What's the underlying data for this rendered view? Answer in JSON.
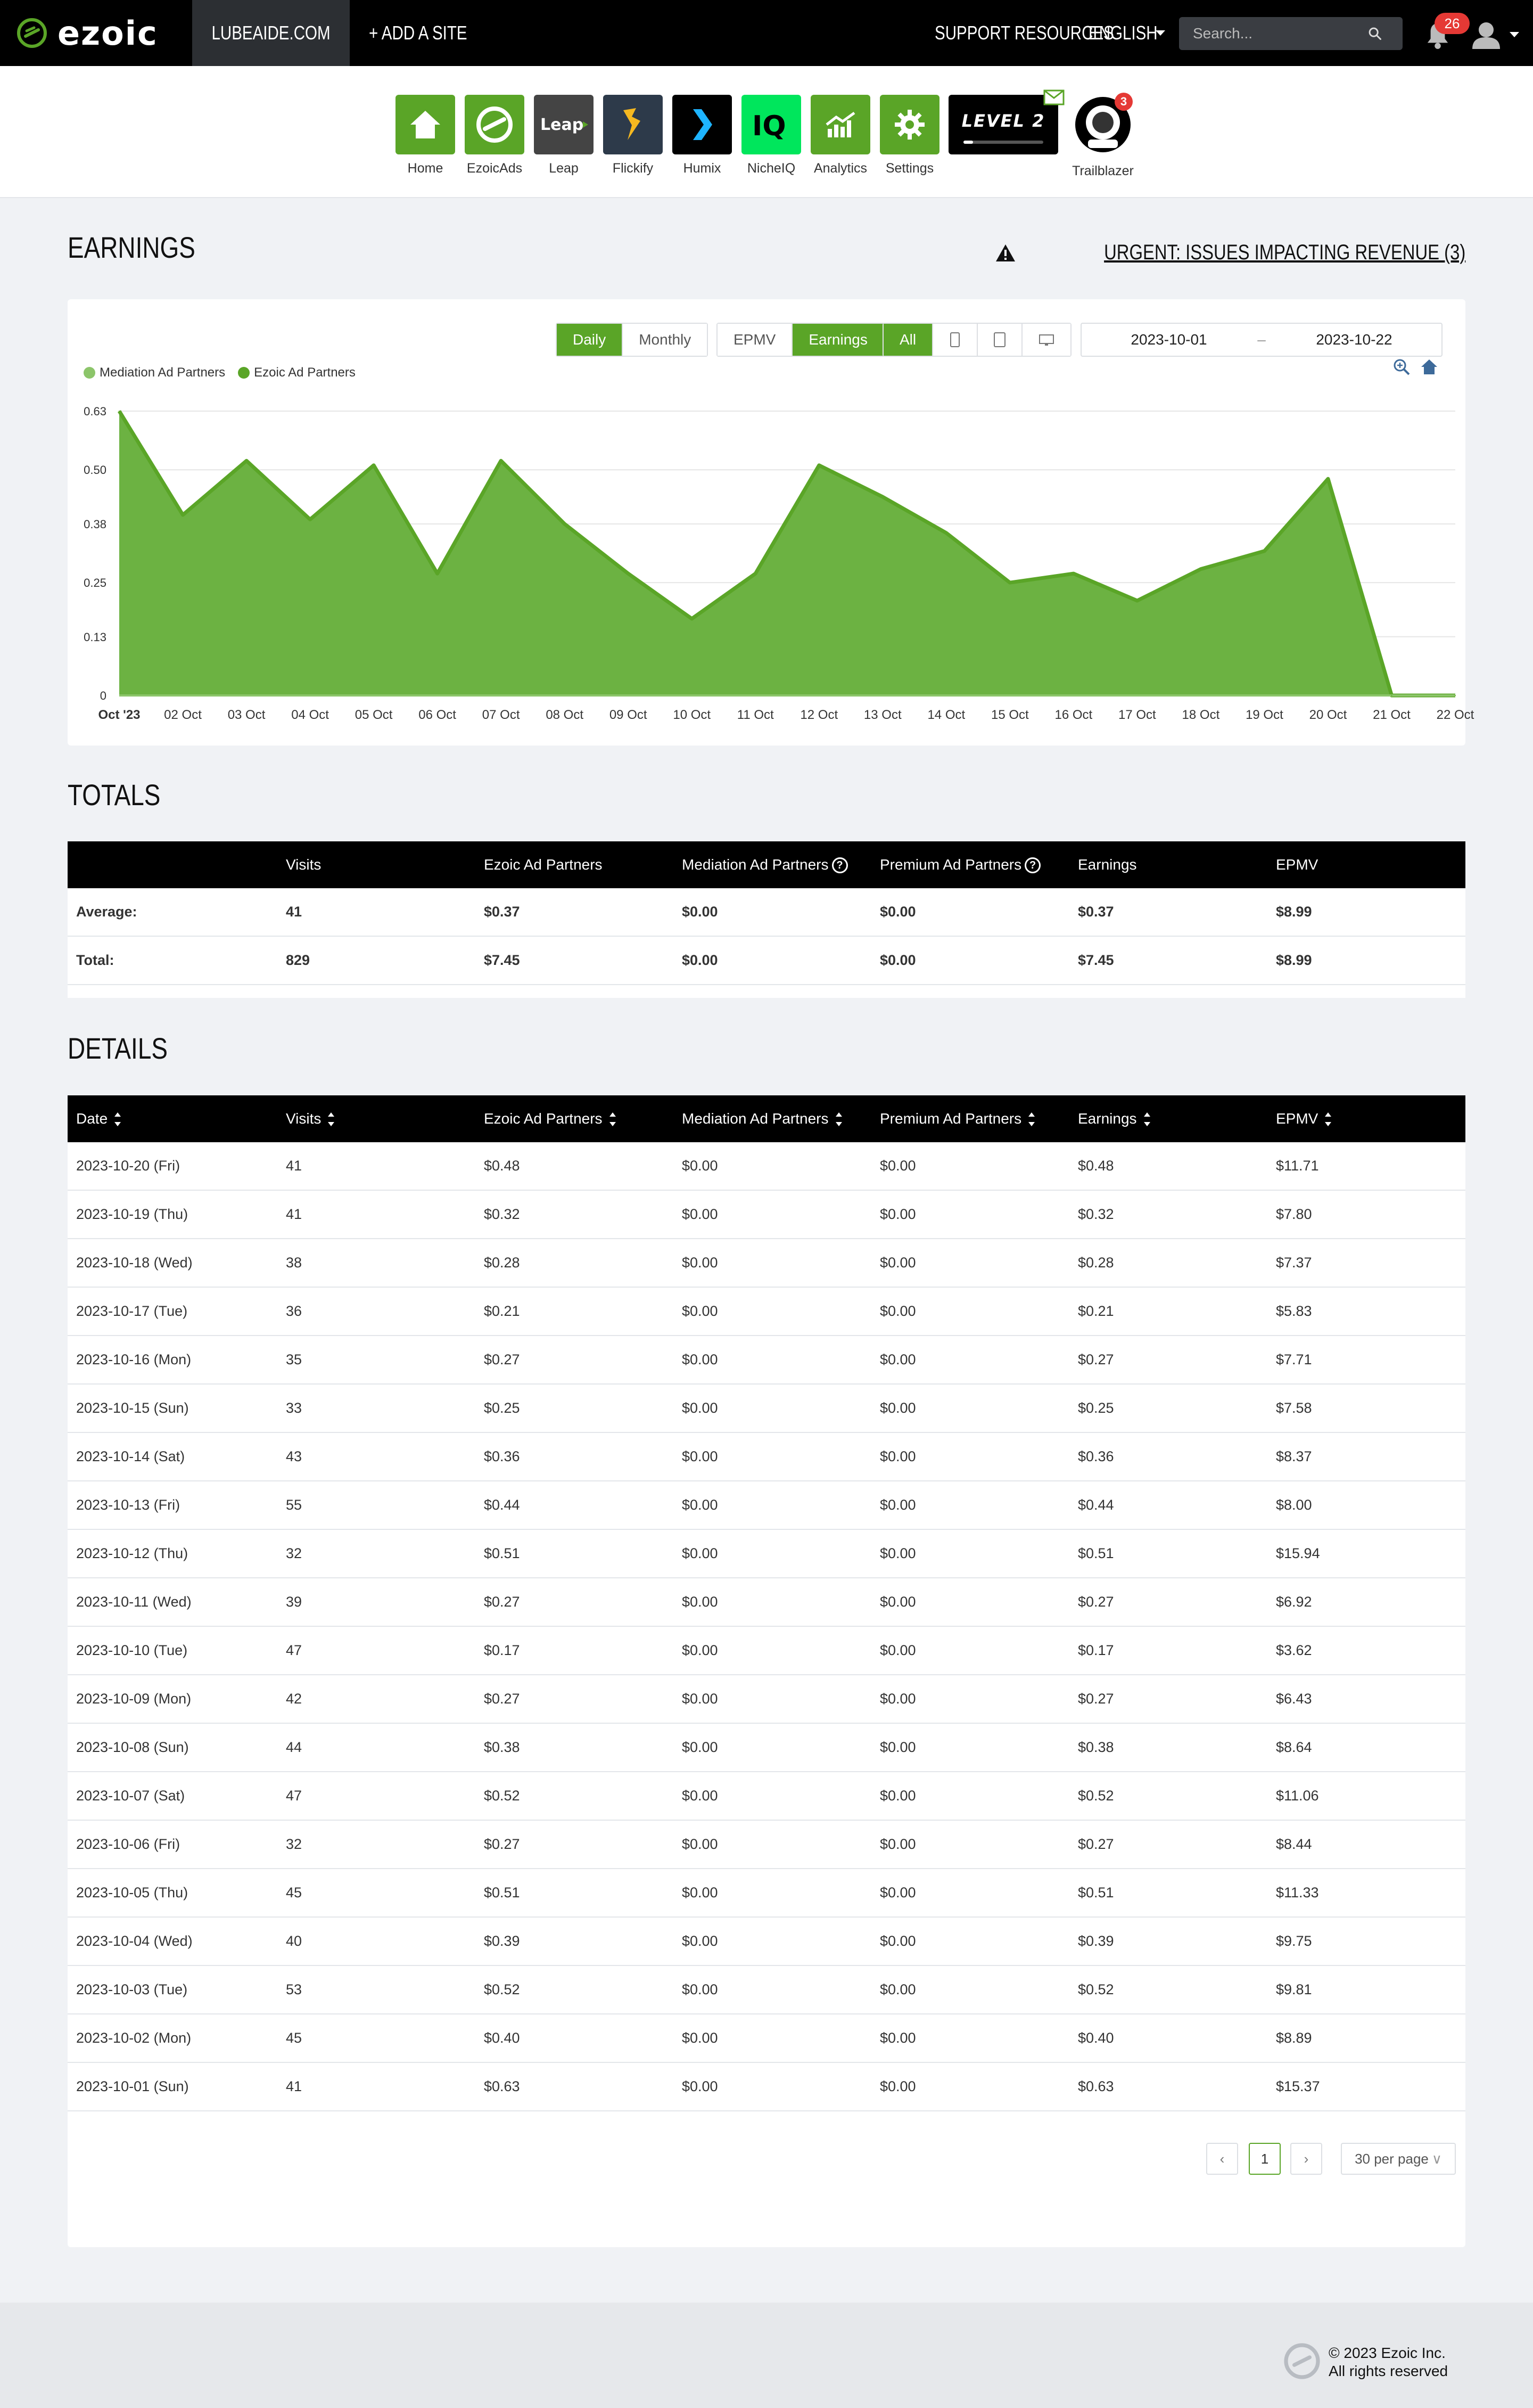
{
  "nav": {
    "brand": "ezoic",
    "site": "LUBEAIDE.COM",
    "add_site": "+ ADD A SITE",
    "support": "SUPPORT RESOURCES",
    "language": "ENGLISH",
    "search_placeholder": "Search...",
    "notifications": "26"
  },
  "apps": [
    {
      "label": "Home",
      "icon": "home-icon",
      "color": "#5aa527"
    },
    {
      "label": "EzoicAds",
      "icon": "ezoicads-icon",
      "color": "#5aa527"
    },
    {
      "label": "Leap",
      "icon": "leap-icon",
      "color": "#444444"
    },
    {
      "label": "Flickify",
      "icon": "flickify-icon",
      "color": "#2d3a4a"
    },
    {
      "label": "Humix",
      "icon": "humix-icon",
      "color": "#000000"
    },
    {
      "label": "NicheIQ",
      "icon": "nicheiq-icon",
      "color": "#00e65c"
    },
    {
      "label": "Analytics",
      "icon": "analytics-icon",
      "color": "#5aa527"
    },
    {
      "label": "Settings",
      "icon": "gear-icon",
      "color": "#5aa527"
    }
  ],
  "level": {
    "label": "LEVEL 2",
    "progress": 0.12
  },
  "trailblazer": {
    "label": "Trailblazer",
    "badge": "3"
  },
  "earnings": {
    "title": "EARNINGS",
    "urgent": "URGENT: ISSUES IMPACTING REVENUE (3)",
    "period_buttons": [
      "Daily",
      "Monthly"
    ],
    "metric_buttons": [
      "EPMV",
      "Earnings"
    ],
    "device_all": "All",
    "date_from": "2023-10-01",
    "date_sep": "–",
    "date_to": "2023-10-22"
  },
  "chart_data": {
    "type": "area",
    "legend": [
      "Mediation Ad Partners",
      "Ezoic Ad Partners"
    ],
    "legend_position": "top-left",
    "colors": {
      "mediation": "#8cc56a",
      "ezoic": "#5aa527"
    },
    "x": [
      "Oct '23",
      "02 Oct",
      "03 Oct",
      "04 Oct",
      "05 Oct",
      "06 Oct",
      "07 Oct",
      "08 Oct",
      "09 Oct",
      "10 Oct",
      "11 Oct",
      "12 Oct",
      "13 Oct",
      "14 Oct",
      "15 Oct",
      "16 Oct",
      "17 Oct",
      "18 Oct",
      "19 Oct",
      "20 Oct",
      "21 Oct",
      "22 Oct"
    ],
    "series": [
      {
        "name": "Mediation Ad Partners",
        "values": [
          0,
          0,
          0,
          0,
          0,
          0,
          0,
          0,
          0,
          0,
          0,
          0,
          0,
          0,
          0,
          0,
          0,
          0,
          0,
          0,
          0,
          0
        ]
      },
      {
        "name": "Ezoic Ad Partners",
        "values": [
          0.63,
          0.4,
          0.52,
          0.39,
          0.51,
          0.27,
          0.52,
          0.38,
          0.27,
          0.17,
          0.27,
          0.51,
          0.44,
          0.36,
          0.25,
          0.27,
          0.21,
          0.28,
          0.32,
          0.48,
          0,
          0
        ]
      }
    ],
    "yticks": [
      "0",
      "0.13",
      "0.25",
      "0.38",
      "0.50",
      "0.63"
    ],
    "ylim": [
      0,
      0.63
    ],
    "grid": true
  },
  "totals": {
    "title": "TOTALS",
    "headers": [
      "",
      "Visits",
      "Ezoic Ad Partners",
      "Mediation Ad Partners",
      "Premium Ad Partners",
      "Earnings",
      "EPMV"
    ],
    "rows": [
      [
        "Average:",
        "41",
        "$0.37",
        "$0.00",
        "$0.00",
        "$0.37",
        "$8.99"
      ],
      [
        "Total:",
        "829",
        "$7.45",
        "$0.00",
        "$0.00",
        "$7.45",
        "$8.99"
      ]
    ]
  },
  "details": {
    "title": "DETAILS",
    "headers": [
      "Date",
      "Visits",
      "Ezoic Ad Partners",
      "Mediation Ad Partners",
      "Premium Ad Partners",
      "Earnings",
      "EPMV"
    ],
    "rows": [
      [
        "2023-10-20 (Fri)",
        "41",
        "$0.48",
        "$0.00",
        "$0.00",
        "$0.48",
        "$11.71"
      ],
      [
        "2023-10-19 (Thu)",
        "41",
        "$0.32",
        "$0.00",
        "$0.00",
        "$0.32",
        "$7.80"
      ],
      [
        "2023-10-18 (Wed)",
        "38",
        "$0.28",
        "$0.00",
        "$0.00",
        "$0.28",
        "$7.37"
      ],
      [
        "2023-10-17 (Tue)",
        "36",
        "$0.21",
        "$0.00",
        "$0.00",
        "$0.21",
        "$5.83"
      ],
      [
        "2023-10-16 (Mon)",
        "35",
        "$0.27",
        "$0.00",
        "$0.00",
        "$0.27",
        "$7.71"
      ],
      [
        "2023-10-15 (Sun)",
        "33",
        "$0.25",
        "$0.00",
        "$0.00",
        "$0.25",
        "$7.58"
      ],
      [
        "2023-10-14 (Sat)",
        "43",
        "$0.36",
        "$0.00",
        "$0.00",
        "$0.36",
        "$8.37"
      ],
      [
        "2023-10-13 (Fri)",
        "55",
        "$0.44",
        "$0.00",
        "$0.00",
        "$0.44",
        "$8.00"
      ],
      [
        "2023-10-12 (Thu)",
        "32",
        "$0.51",
        "$0.00",
        "$0.00",
        "$0.51",
        "$15.94"
      ],
      [
        "2023-10-11 (Wed)",
        "39",
        "$0.27",
        "$0.00",
        "$0.00",
        "$0.27",
        "$6.92"
      ],
      [
        "2023-10-10 (Tue)",
        "47",
        "$0.17",
        "$0.00",
        "$0.00",
        "$0.17",
        "$3.62"
      ],
      [
        "2023-10-09 (Mon)",
        "42",
        "$0.27",
        "$0.00",
        "$0.00",
        "$0.27",
        "$6.43"
      ],
      [
        "2023-10-08 (Sun)",
        "44",
        "$0.38",
        "$0.00",
        "$0.00",
        "$0.38",
        "$8.64"
      ],
      [
        "2023-10-07 (Sat)",
        "47",
        "$0.52",
        "$0.00",
        "$0.00",
        "$0.52",
        "$11.06"
      ],
      [
        "2023-10-06 (Fri)",
        "32",
        "$0.27",
        "$0.00",
        "$0.00",
        "$0.27",
        "$8.44"
      ],
      [
        "2023-10-05 (Thu)",
        "45",
        "$0.51",
        "$0.00",
        "$0.00",
        "$0.51",
        "$11.33"
      ],
      [
        "2023-10-04 (Wed)",
        "40",
        "$0.39",
        "$0.00",
        "$0.00",
        "$0.39",
        "$9.75"
      ],
      [
        "2023-10-03 (Tue)",
        "53",
        "$0.52",
        "$0.00",
        "$0.00",
        "$0.52",
        "$9.81"
      ],
      [
        "2023-10-02 (Mon)",
        "45",
        "$0.40",
        "$0.00",
        "$0.00",
        "$0.40",
        "$8.89"
      ],
      [
        "2023-10-01 (Sun)",
        "41",
        "$0.63",
        "$0.00",
        "$0.00",
        "$0.63",
        "$15.37"
      ]
    ],
    "pagination": {
      "current": "1",
      "per_page": "30 per page"
    }
  },
  "footer": {
    "line1": "© 2023 Ezoic Inc.",
    "line2": "All rights reserved"
  }
}
